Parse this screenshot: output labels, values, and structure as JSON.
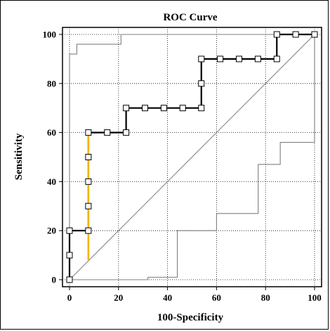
{
  "chart_data": {
    "type": "line",
    "title": "ROC Curve",
    "xlabel": "100-Specificity",
    "ylabel": "Sensitivity",
    "xlim": [
      0,
      100
    ],
    "ylim": [
      0,
      100
    ],
    "x_ticks": [
      "0",
      "20",
      "40",
      "60",
      "80",
      "100"
    ],
    "y_ticks": [
      "0",
      "20",
      "40",
      "60",
      "80",
      "100"
    ],
    "grid": true,
    "colors": {
      "roc": "#000000",
      "ci": "#7f7f7f",
      "diagonal": "#7f7f7f",
      "highlight": "#f2b400",
      "grid": "#000000"
    },
    "series": [
      {
        "values": [
          [
            0,
            0
          ],
          [
            0,
            10
          ],
          [
            0,
            20
          ],
          [
            7.7,
            20
          ],
          [
            7.7,
            30
          ],
          [
            7.7,
            40
          ],
          [
            7.7,
            50
          ],
          [
            7.7,
            60
          ],
          [
            15.4,
            60
          ],
          [
            23.1,
            60
          ],
          [
            23.1,
            70
          ],
          [
            30.8,
            70
          ],
          [
            38.5,
            70
          ],
          [
            46.2,
            70
          ],
          [
            53.8,
            70
          ],
          [
            53.8,
            80
          ],
          [
            53.8,
            90
          ],
          [
            61.5,
            90
          ],
          [
            69.2,
            90
          ],
          [
            76.9,
            90
          ],
          [
            84.6,
            90
          ],
          [
            84.6,
            100
          ],
          [
            92.3,
            100
          ],
          [
            100,
            100
          ]
        ]
      },
      {
        "values": [
          [
            0,
            0
          ],
          [
            0,
            92
          ],
          [
            3,
            92
          ],
          [
            3,
            96
          ],
          [
            21,
            96
          ],
          [
            21,
            100
          ],
          [
            100,
            100
          ]
        ]
      },
      {
        "values": [
          [
            0,
            0
          ],
          [
            32,
            0
          ],
          [
            32,
            1
          ],
          [
            44,
            1
          ],
          [
            44,
            20
          ],
          [
            60,
            20
          ],
          [
            60,
            27
          ],
          [
            77,
            27
          ],
          [
            77,
            47
          ],
          [
            86,
            47
          ],
          [
            86,
            56
          ],
          [
            100,
            56
          ],
          [
            100,
            100
          ]
        ]
      },
      {
        "values": [
          [
            0,
            0
          ],
          [
            100,
            100
          ]
        ]
      },
      {
        "values": [
          [
            7.7,
            8
          ],
          [
            7.7,
            60
          ]
        ]
      }
    ],
    "markers": [
      [
        0,
        0
      ],
      [
        0,
        10
      ],
      [
        0,
        20
      ],
      [
        7.7,
        20
      ],
      [
        7.7,
        30
      ],
      [
        7.7,
        40
      ],
      [
        7.7,
        50
      ],
      [
        7.7,
        60
      ],
      [
        15.4,
        60
      ],
      [
        23.1,
        60
      ],
      [
        23.1,
        70
      ],
      [
        30.8,
        70
      ],
      [
        38.5,
        70
      ],
      [
        46.2,
        70
      ],
      [
        53.8,
        70
      ],
      [
        53.8,
        80
      ],
      [
        53.8,
        90
      ],
      [
        61.5,
        90
      ],
      [
        69.2,
        90
      ],
      [
        76.9,
        90
      ],
      [
        84.6,
        90
      ],
      [
        84.6,
        100
      ],
      [
        92.3,
        100
      ],
      [
        100,
        100
      ]
    ]
  }
}
